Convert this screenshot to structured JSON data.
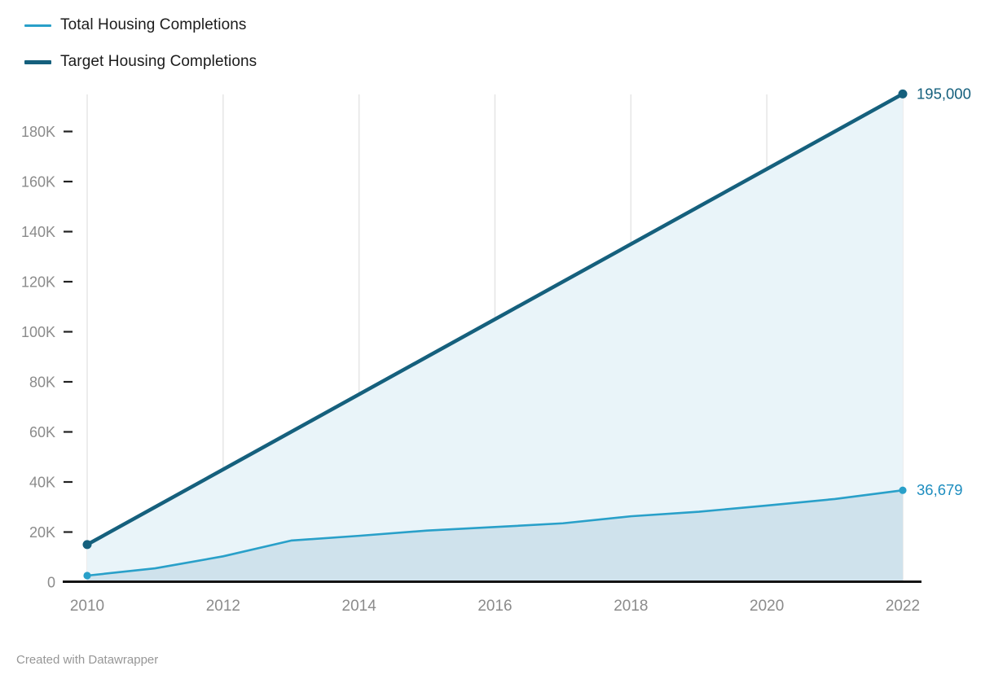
{
  "footer": {
    "credit": "Created with Datawrapper"
  },
  "colors": {
    "total_line": "#29a0c9",
    "total_label": "#1d8dbf",
    "total_fill": "#cfe2ec",
    "target_line": "#15607d",
    "target_label": "#15607d",
    "target_fill": "#e9f4f9",
    "grid": "rgba(0,0,0,0.10)",
    "baseline": "#141414",
    "tick_dash": "#222222",
    "axis_text": "#8b8b8b"
  },
  "chart_data": {
    "type": "area",
    "title": "",
    "xlabel": "",
    "ylabel": "",
    "x": [
      2010,
      2011,
      2012,
      2013,
      2014,
      2015,
      2016,
      2017,
      2018,
      2019,
      2020,
      2021,
      2022
    ],
    "series": [
      {
        "name": "Target Housing Completions",
        "values": [
          15000,
          30000,
          45000,
          60000,
          75000,
          90000,
          105000,
          120000,
          135000,
          150000,
          165000,
          180000,
          195000
        ],
        "end_label": "195,000"
      },
      {
        "name": "Total Housing Completions",
        "values": [
          2600,
          5500,
          10300,
          16600,
          18500,
          20600,
          22000,
          23500,
          26300,
          28100,
          30600,
          33200,
          36679
        ],
        "end_label": "36,679"
      }
    ],
    "ylim": [
      0,
      195000
    ],
    "yticks": [
      {
        "label": "0",
        "value": 0
      },
      {
        "label": "20K",
        "value": 20000
      },
      {
        "label": "40K",
        "value": 40000
      },
      {
        "label": "60K",
        "value": 60000
      },
      {
        "label": "80K",
        "value": 80000
      },
      {
        "label": "100K",
        "value": 100000
      },
      {
        "label": "120K",
        "value": 120000
      },
      {
        "label": "140K",
        "value": 140000
      },
      {
        "label": "160K",
        "value": 160000
      },
      {
        "label": "180K",
        "value": 180000
      }
    ],
    "xticks": [
      {
        "label": "2010",
        "value": 2010
      },
      {
        "label": "2012",
        "value": 2012
      },
      {
        "label": "2014",
        "value": 2014
      },
      {
        "label": "2016",
        "value": 2016
      },
      {
        "label": "2018",
        "value": 2018
      },
      {
        "label": "2020",
        "value": 2020
      },
      {
        "label": "2022",
        "value": 2022
      }
    ],
    "grid": "vertical-only",
    "legend_position": "top-left"
  }
}
